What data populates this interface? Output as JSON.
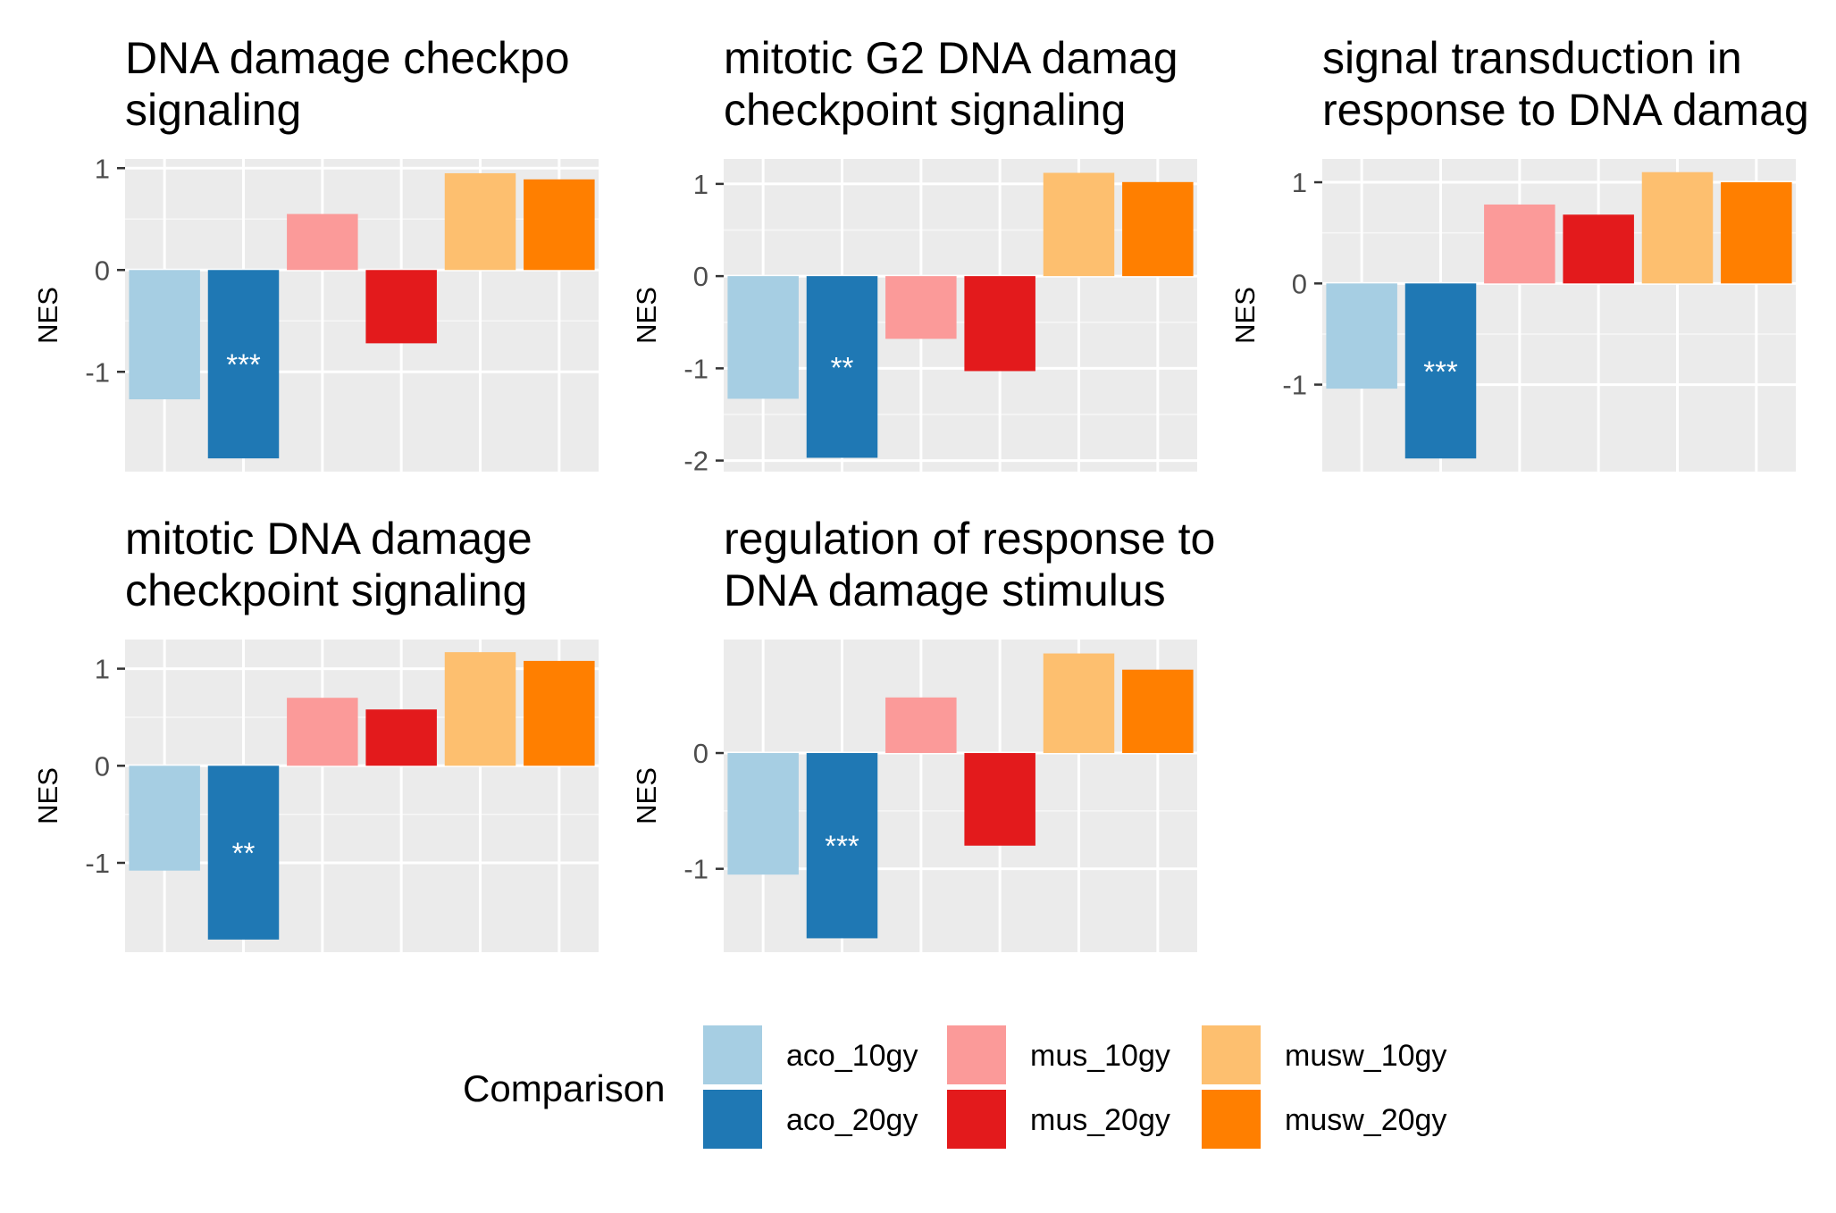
{
  "chart_data": {
    "type": "bar",
    "ylabel": "NES",
    "legend": {
      "title": "Comparison",
      "placement": "bottom",
      "entries": [
        {
          "label": "aco_10gy",
          "color": "#A6CEE3"
        },
        {
          "label": "aco_20gy",
          "color": "#1F78B4"
        },
        {
          "label": "mus_10gy",
          "color": "#FB9A99"
        },
        {
          "label": "mus_20gy",
          "color": "#E31A1C"
        },
        {
          "label": "musw_10gy",
          "color": "#FDBF6F"
        },
        {
          "label": "musw_20gy",
          "color": "#FF7F00"
        }
      ]
    },
    "categories": [
      "aco_10gy",
      "aco_20gy",
      "mus_10gy",
      "mus_20gy",
      "musw_10gy",
      "musw_20gy"
    ],
    "grid": true,
    "panels": [
      {
        "title_lines": [
          "DNA damage checkpo",
          "signaling"
        ],
        "values": [
          -1.27,
          -1.85,
          0.55,
          -0.72,
          0.95,
          0.89
        ],
        "significance": [
          "",
          "***",
          "",
          "",
          "",
          ""
        ],
        "ylim": [
          -1.98,
          1.09
        ],
        "yticks": [
          1,
          0,
          -1
        ]
      },
      {
        "title_lines": [
          "mitotic G2 DNA damag",
          "checkpoint signaling"
        ],
        "values": [
          -1.33,
          -1.97,
          -0.68,
          -1.03,
          1.12,
          1.02
        ],
        "significance": [
          "",
          "**",
          "",
          "",
          "",
          ""
        ],
        "ylim": [
          -2.12,
          1.27
        ],
        "yticks": [
          1,
          0,
          -1,
          -2
        ]
      },
      {
        "title_lines": [
          "signal transduction in",
          "response to DNA damag"
        ],
        "values": [
          -1.04,
          -1.73,
          0.78,
          0.68,
          1.1,
          1.0
        ],
        "significance": [
          "",
          "***",
          "",
          "",
          "",
          ""
        ],
        "ylim": [
          -1.86,
          1.23
        ],
        "yticks": [
          1,
          0,
          -1
        ]
      },
      {
        "title_lines": [
          "mitotic DNA damage",
          "checkpoint signaling"
        ],
        "values": [
          -1.08,
          -1.79,
          0.7,
          0.58,
          1.17,
          1.08
        ],
        "significance": [
          "",
          "**",
          "",
          "",
          "",
          ""
        ],
        "ylim": [
          -1.92,
          1.3
        ],
        "yticks": [
          1,
          0,
          -1
        ]
      },
      {
        "title_lines": [
          "regulation of response to",
          "DNA damage stimulus"
        ],
        "values": [
          -1.05,
          -1.6,
          0.48,
          -0.8,
          0.86,
          0.72
        ],
        "significance": [
          "",
          "***",
          "",
          "",
          "",
          ""
        ],
        "ylim": [
          -1.72,
          0.98
        ],
        "yticks": [
          0,
          -1
        ]
      }
    ]
  }
}
